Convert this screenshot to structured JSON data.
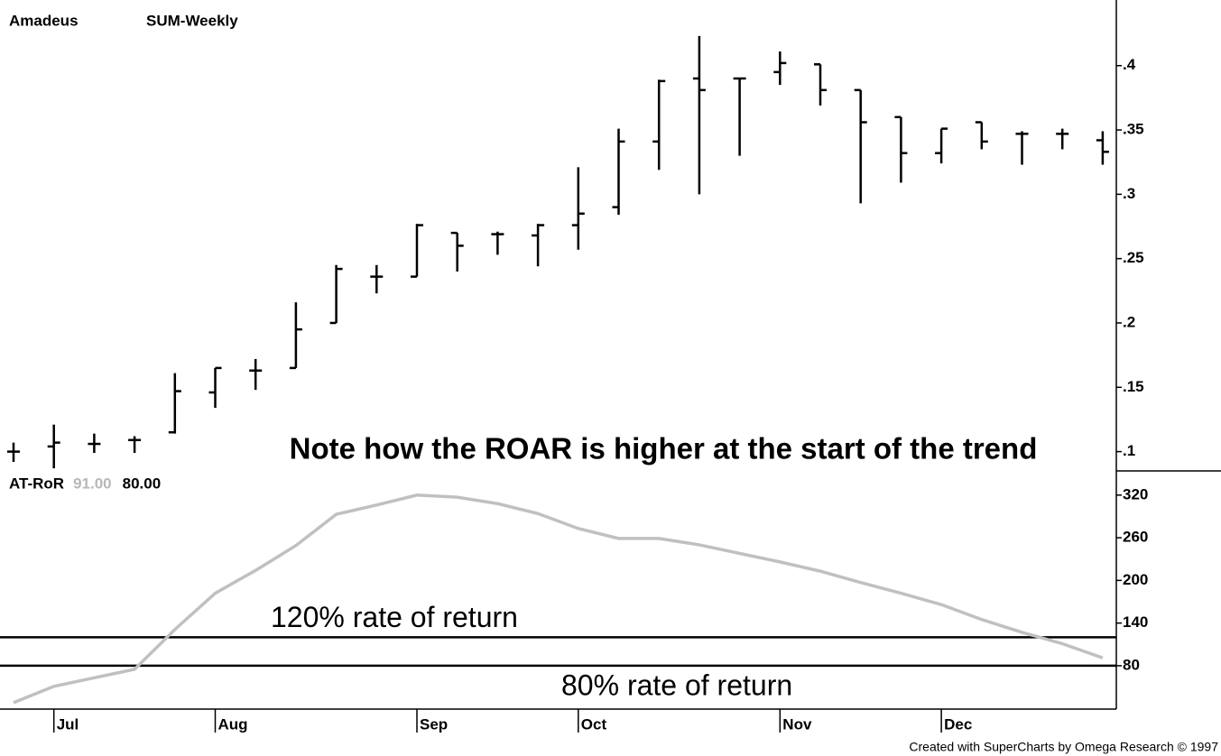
{
  "chart_data": [
    {
      "type": "ohlc",
      "symbol": "Amadeus",
      "title": "SUM-Weekly",
      "annotation": "Note how the ROAR is higher at the start of the trend",
      "categories": [
        null,
        "Jul",
        null,
        null,
        null,
        "Aug",
        null,
        null,
        null,
        null,
        "Sep",
        null,
        null,
        null,
        "Oct",
        null,
        null,
        null,
        null,
        "Nov",
        null,
        null,
        null,
        "Dec",
        null,
        null,
        null,
        null
      ],
      "color": "#000000",
      "open": [
        0.1,
        0.104,
        0.106,
        0.109,
        0.115,
        0.146,
        0.163,
        0.165,
        0.2,
        0.236,
        0.236,
        0.27,
        0.269,
        0.268,
        0.276,
        0.29,
        0.341,
        0.39,
        0.39,
        0.395,
        0.401,
        0.381,
        0.36,
        0.332,
        0.356,
        0.347,
        0.347,
        0.342
      ],
      "high": [
        0.107,
        0.121,
        0.114,
        0.112,
        0.161,
        0.165,
        0.172,
        0.216,
        0.245,
        0.245,
        0.277,
        0.27,
        0.271,
        0.277,
        0.321,
        0.351,
        0.389,
        0.423,
        0.39,
        0.411,
        0.401,
        0.381,
        0.36,
        0.351,
        0.356,
        0.349,
        0.351,
        0.349
      ],
      "low": [
        0.092,
        0.087,
        0.099,
        0.099,
        0.114,
        0.134,
        0.148,
        0.165,
        0.2,
        0.223,
        0.236,
        0.24,
        0.253,
        0.244,
        0.257,
        0.284,
        0.319,
        0.3,
        0.33,
        0.385,
        0.369,
        0.293,
        0.309,
        0.324,
        0.335,
        0.323,
        0.335,
        0.323
      ],
      "close": [
        0.1,
        0.107,
        0.106,
        0.109,
        0.147,
        0.165,
        0.163,
        0.195,
        0.242,
        0.236,
        0.276,
        0.26,
        0.269,
        0.276,
        0.285,
        0.341,
        0.388,
        0.381,
        0.39,
        0.402,
        0.381,
        0.356,
        0.332,
        0.351,
        0.341,
        0.347,
        0.347,
        0.333
      ],
      "ylim": [
        0.085,
        0.451
      ],
      "yticks": [
        {
          "value": 0.1,
          "label": ".1"
        },
        {
          "value": 0.15,
          "label": ".15"
        },
        {
          "value": 0.2,
          "label": ".2"
        },
        {
          "value": 0.25,
          "label": ".25"
        },
        {
          "value": 0.3,
          "label": ".3"
        },
        {
          "value": 0.35,
          "label": ".35"
        },
        {
          "value": 0.4,
          "label": ".4"
        }
      ]
    },
    {
      "type": "line",
      "legend": {
        "name": "AT-RoR",
        "labels": [
          {
            "text": "91.00",
            "color": "#b8b8b8"
          },
          {
            "text": "80.00",
            "color": "#000000"
          }
        ]
      },
      "series": [
        {
          "name": "AT-RoR",
          "color": "#c0c0c0",
          "values": [
            28,
            51,
            63,
            75,
            131,
            182,
            214,
            249,
            293,
            306,
            320,
            317,
            308,
            294,
            273,
            259,
            259,
            250,
            238,
            226,
            213,
            197,
            182,
            166,
            145,
            127,
            111,
            91
          ]
        }
      ],
      "hlines": [
        {
          "value": 120,
          "label": "120% rate of return"
        },
        {
          "value": 80,
          "label": "80% rate of return"
        }
      ],
      "ylim": [
        19,
        354
      ],
      "yticks": [
        80,
        140,
        200,
        260,
        320
      ]
    }
  ],
  "footer": "Created with SuperCharts by Omega Research © 1997"
}
